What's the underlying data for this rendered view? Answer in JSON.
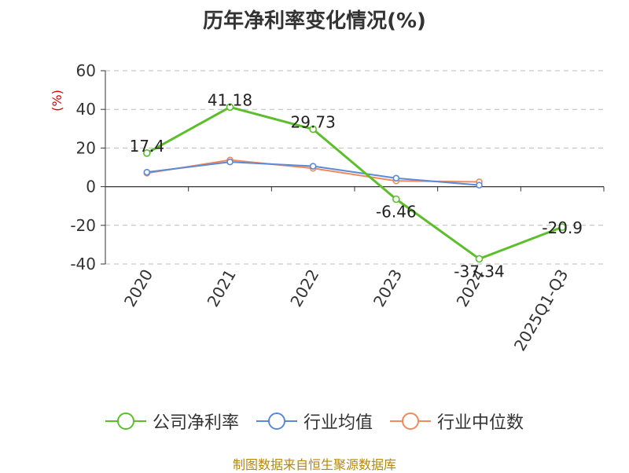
{
  "chart_data": {
    "type": "line",
    "title": "历年净利率变化情况(%)",
    "ylabel": "(%)",
    "categories": [
      "2020",
      "2021",
      "2022",
      "2023",
      "2024",
      "2025Q1-Q3"
    ],
    "ylim": [
      -40,
      60
    ],
    "yticks": [
      60,
      40,
      20,
      0,
      -20,
      -40
    ],
    "grid": true,
    "legend_position": "bottom",
    "series": [
      {
        "name": "公司净利率",
        "color": "#5cbf2a",
        "values": [
          17.4,
          41.18,
          29.73,
          -6.46,
          -37.34,
          -20.9
        ],
        "labels": [
          "17.4",
          "41.18",
          "29.73",
          "-6.46",
          "-37.34",
          "-20.9"
        ]
      },
      {
        "name": "行业均值",
        "color": "#5b8ad9",
        "values": [
          7.5,
          12.8,
          10.6,
          4.4,
          0.8,
          null
        ]
      },
      {
        "name": "行业中位数",
        "color": "#f08a5d",
        "values": [
          7.0,
          13.8,
          9.5,
          3.0,
          2.5,
          null
        ]
      }
    ]
  },
  "source_note": "制图数据来自恒生聚源数据库"
}
